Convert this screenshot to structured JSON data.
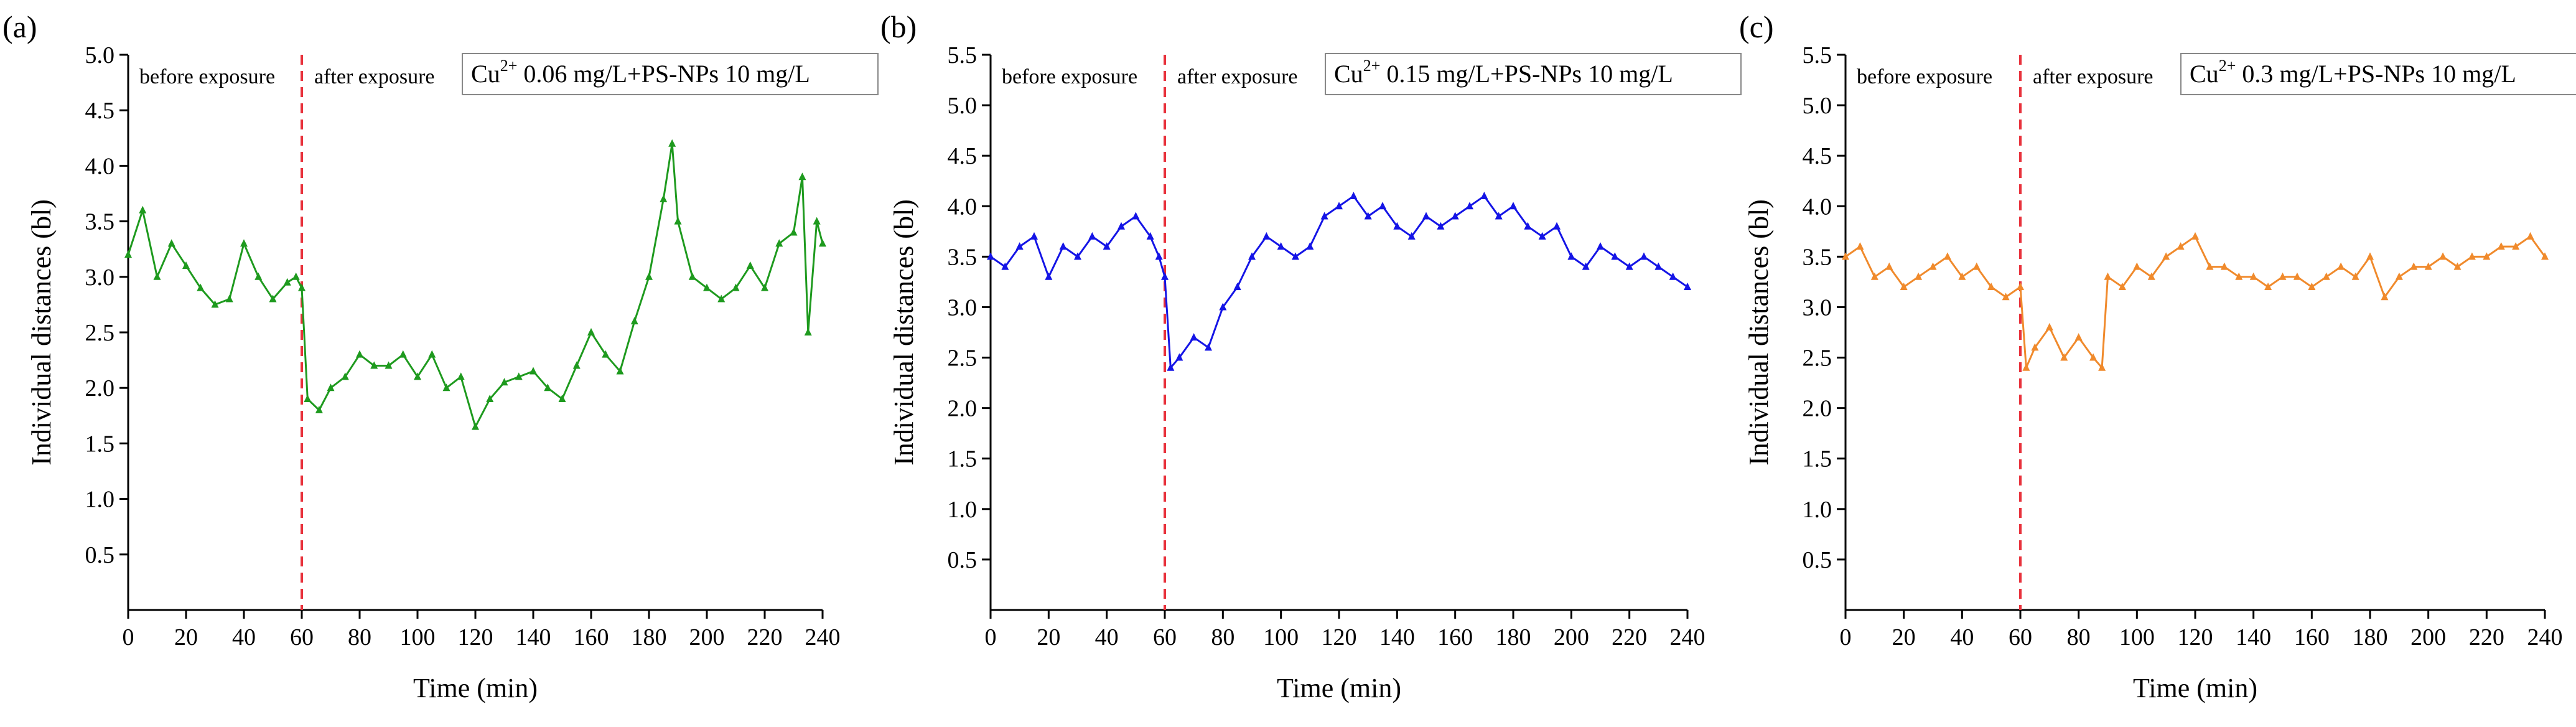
{
  "chart_data": [
    {
      "type": "line",
      "panel_label": "(a)",
      "legend": {
        "ion": "Cu",
        "charge": "2+",
        "text": "0.06 mg/L+PS-NPs 10 mg/L"
      },
      "phase_labels": {
        "before": "before exposure",
        "after": "after exposure"
      },
      "exposure_time": 60,
      "xlabel": "Time (min)",
      "ylabel": "Individual distances (bl)",
      "xlim": [
        0,
        240
      ],
      "ylim": [
        0,
        5.0
      ],
      "xticks": [
        "0",
        "20",
        "40",
        "60",
        "80",
        "100",
        "120",
        "140",
        "160",
        "180",
        "200",
        "220",
        "240"
      ],
      "yticks": [
        "0.5",
        "1.0",
        "1.5",
        "2.0",
        "2.5",
        "3.0",
        "3.5",
        "4.0",
        "4.5",
        "5.0"
      ],
      "color": "#1e9a1e",
      "series": [
        {
          "name": "Cu2+ 0.06 mg/L+PS-NPs 10 mg/L",
          "x": [
            0,
            5,
            10,
            15,
            20,
            25,
            30,
            35,
            40,
            45,
            50,
            55,
            58,
            60,
            62,
            66,
            70,
            75,
            80,
            85,
            90,
            95,
            100,
            105,
            110,
            115,
            120,
            125,
            130,
            135,
            140,
            145,
            150,
            155,
            160,
            165,
            170,
            175,
            180,
            185,
            188,
            190,
            195,
            200,
            205,
            210,
            215,
            220,
            225,
            230,
            233,
            235,
            238,
            240
          ],
          "y": [
            3.2,
            3.6,
            3.0,
            3.3,
            3.1,
            2.9,
            2.75,
            2.8,
            3.3,
            3.0,
            2.8,
            2.95,
            3.0,
            2.9,
            1.9,
            1.8,
            2.0,
            2.1,
            2.3,
            2.2,
            2.2,
            2.3,
            2.1,
            2.3,
            2.0,
            2.1,
            1.65,
            1.9,
            2.05,
            2.1,
            2.15,
            2.0,
            1.9,
            2.2,
            2.5,
            2.3,
            2.15,
            2.6,
            3.0,
            3.7,
            4.2,
            3.5,
            3.0,
            2.9,
            2.8,
            2.9,
            3.1,
            2.9,
            3.3,
            3.4,
            3.9,
            2.5,
            3.5,
            3.3
          ]
        }
      ]
    },
    {
      "type": "line",
      "panel_label": "(b)",
      "legend": {
        "ion": "Cu",
        "charge": "2+",
        "text": "0.15 mg/L+PS-NPs 10 mg/L"
      },
      "phase_labels": {
        "before": "before exposure",
        "after": "after exposure"
      },
      "exposure_time": 60,
      "xlabel": "Time (min)",
      "ylabel": "Individual distances (bl)",
      "xlim": [
        0,
        240
      ],
      "ylim": [
        0,
        5.5
      ],
      "xticks": [
        "0",
        "20",
        "40",
        "60",
        "80",
        "100",
        "120",
        "140",
        "160",
        "180",
        "200",
        "220",
        "240"
      ],
      "yticks": [
        "0.5",
        "1.0",
        "1.5",
        "2.0",
        "2.5",
        "3.0",
        "3.5",
        "4.0",
        "4.5",
        "5.0",
        "5.5"
      ],
      "color": "#1414e6",
      "series": [
        {
          "name": "Cu2+ 0.15 mg/L+PS-NPs 10 mg/L",
          "x": [
            0,
            5,
            10,
            15,
            20,
            25,
            30,
            35,
            40,
            45,
            50,
            55,
            58,
            60,
            62,
            65,
            70,
            75,
            80,
            85,
            90,
            95,
            100,
            105,
            110,
            115,
            120,
            125,
            130,
            135,
            140,
            145,
            150,
            155,
            160,
            165,
            170,
            175,
            180,
            185,
            190,
            195,
            200,
            205,
            210,
            215,
            220,
            225,
            230,
            235,
            240
          ],
          "y": [
            3.5,
            3.4,
            3.6,
            3.7,
            3.3,
            3.6,
            3.5,
            3.7,
            3.6,
            3.8,
            3.9,
            3.7,
            3.5,
            3.3,
            2.4,
            2.5,
            2.7,
            2.6,
            3.0,
            3.2,
            3.5,
            3.7,
            3.6,
            3.5,
            3.6,
            3.9,
            4.0,
            4.1,
            3.9,
            4.0,
            3.8,
            3.7,
            3.9,
            3.8,
            3.9,
            4.0,
            4.1,
            3.9,
            4.0,
            3.8,
            3.7,
            3.8,
            3.5,
            3.4,
            3.6,
            3.5,
            3.4,
            3.5,
            3.4,
            3.3,
            3.2
          ]
        }
      ]
    },
    {
      "type": "line",
      "panel_label": "(c)",
      "legend": {
        "ion": "Cu",
        "charge": "2+",
        "text": "0.3 mg/L+PS-NPs 10 mg/L"
      },
      "phase_labels": {
        "before": "before exposure",
        "after": "after exposure"
      },
      "exposure_time": 60,
      "xlabel": "Time (min)",
      "ylabel": "Individual distances (bl)",
      "xlim": [
        0,
        240
      ],
      "ylim": [
        0,
        5.5
      ],
      "xticks": [
        "0",
        "20",
        "40",
        "60",
        "80",
        "100",
        "120",
        "140",
        "160",
        "180",
        "200",
        "220",
        "240"
      ],
      "yticks": [
        "0.5",
        "1.0",
        "1.5",
        "2.0",
        "2.5",
        "3.0",
        "3.5",
        "4.0",
        "4.5",
        "5.0",
        "5.5"
      ],
      "color": "#f08a2c",
      "series": [
        {
          "name": "Cu2+ 0.3 mg/L+PS-NPs 10 mg/L",
          "x": [
            0,
            5,
            10,
            15,
            20,
            25,
            30,
            35,
            40,
            45,
            50,
            55,
            60,
            62,
            65,
            70,
            75,
            80,
            85,
            88,
            90,
            95,
            100,
            105,
            110,
            115,
            120,
            125,
            130,
            135,
            140,
            145,
            150,
            155,
            160,
            165,
            170,
            175,
            180,
            185,
            190,
            195,
            200,
            205,
            210,
            215,
            220,
            225,
            230,
            235,
            240
          ],
          "y": [
            3.5,
            3.6,
            3.3,
            3.4,
            3.2,
            3.3,
            3.4,
            3.5,
            3.3,
            3.4,
            3.2,
            3.1,
            3.2,
            2.4,
            2.6,
            2.8,
            2.5,
            2.7,
            2.5,
            2.4,
            3.3,
            3.2,
            3.4,
            3.3,
            3.5,
            3.6,
            3.7,
            3.4,
            3.4,
            3.3,
            3.3,
            3.2,
            3.3,
            3.3,
            3.2,
            3.3,
            3.4,
            3.3,
            3.5,
            3.1,
            3.3,
            3.4,
            3.4,
            3.5,
            3.4,
            3.5,
            3.5,
            3.6,
            3.6,
            3.7,
            3.5
          ]
        }
      ]
    }
  ]
}
